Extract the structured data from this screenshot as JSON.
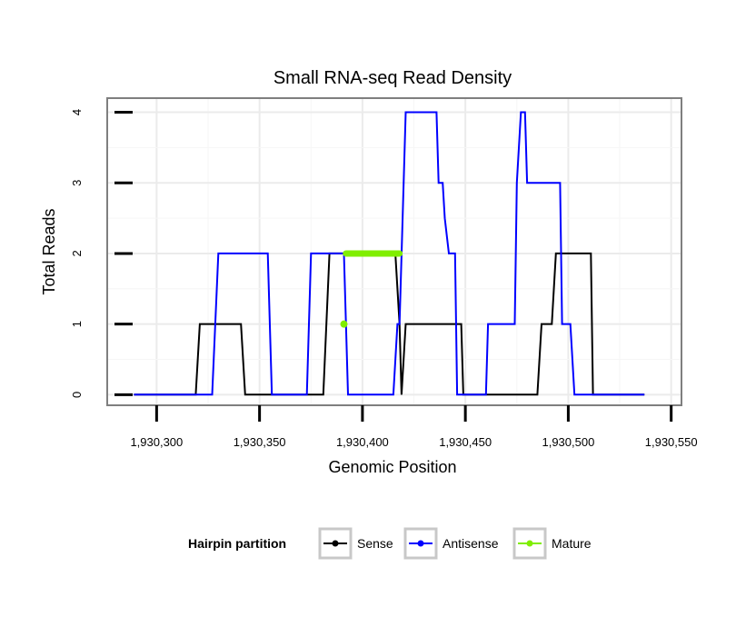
{
  "chart_data": {
    "type": "line",
    "title": "Small RNA-seq Read Density",
    "xlabel": "Genomic Position",
    "ylabel": "Total Reads",
    "xlim": [
      1930276,
      1930555
    ],
    "ylim": [
      -0.15,
      4.2
    ],
    "x_ticks": [
      1930300,
      1930350,
      1930400,
      1930450,
      1930500,
      1930550
    ],
    "x_tick_labels": [
      "1,930,300",
      "1,930,350",
      "1,930,400",
      "1,930,450",
      "1,930,500",
      "1,930,550"
    ],
    "y_ticks": [
      0,
      1,
      2,
      3,
      4
    ],
    "y_tick_labels": [
      "0",
      "1",
      "2",
      "3",
      "4"
    ],
    "grid": true,
    "legend": {
      "title": "Hairpin partition",
      "position": "bottom",
      "entries": [
        "Sense",
        "Antisense",
        "Mature"
      ]
    },
    "series": [
      {
        "name": "Sense",
        "color": "#000000",
        "x": [
          1930289,
          1930319,
          1930321,
          1930341,
          1930343,
          1930381,
          1930384,
          1930416,
          1930418,
          1930419,
          1930421,
          1930448,
          1930449,
          1930485,
          1930487,
          1930492,
          1930494,
          1930511,
          1930512,
          1930537
        ],
        "y": [
          0,
          0,
          1,
          1,
          0,
          0,
          2,
          2,
          1,
          0,
          1,
          1,
          0,
          0,
          1,
          1,
          2,
          2,
          0,
          0
        ]
      },
      {
        "name": "Antisense",
        "color": "#0000ff",
        "x": [
          1930289,
          1930327,
          1930330,
          1930354,
          1930356,
          1930373,
          1930375,
          1930391,
          1930393,
          1930415,
          1930417,
          1930418,
          1930421,
          1930436,
          1930437,
          1930439,
          1930440,
          1930442,
          1930443,
          1930445,
          1930446,
          1930460,
          1930461,
          1930474,
          1930475,
          1930477,
          1930479,
          1930480,
          1930482,
          1930496,
          1930497,
          1930501,
          1930503,
          1930537
        ],
        "y": [
          0,
          0,
          2,
          2,
          0,
          0,
          2,
          2,
          0,
          0,
          1,
          1,
          4,
          4,
          3,
          3,
          2.5,
          2,
          2,
          2,
          0,
          0,
          1,
          1,
          3,
          4,
          4,
          3,
          3,
          3,
          1,
          1,
          0,
          0
        ]
      },
      {
        "name": "Mature",
        "color": "#80ee00",
        "x": [
          1930391,
          1930392,
          1930392,
          1930418
        ],
        "y": [
          1,
          1,
          2,
          2
        ]
      }
    ]
  }
}
